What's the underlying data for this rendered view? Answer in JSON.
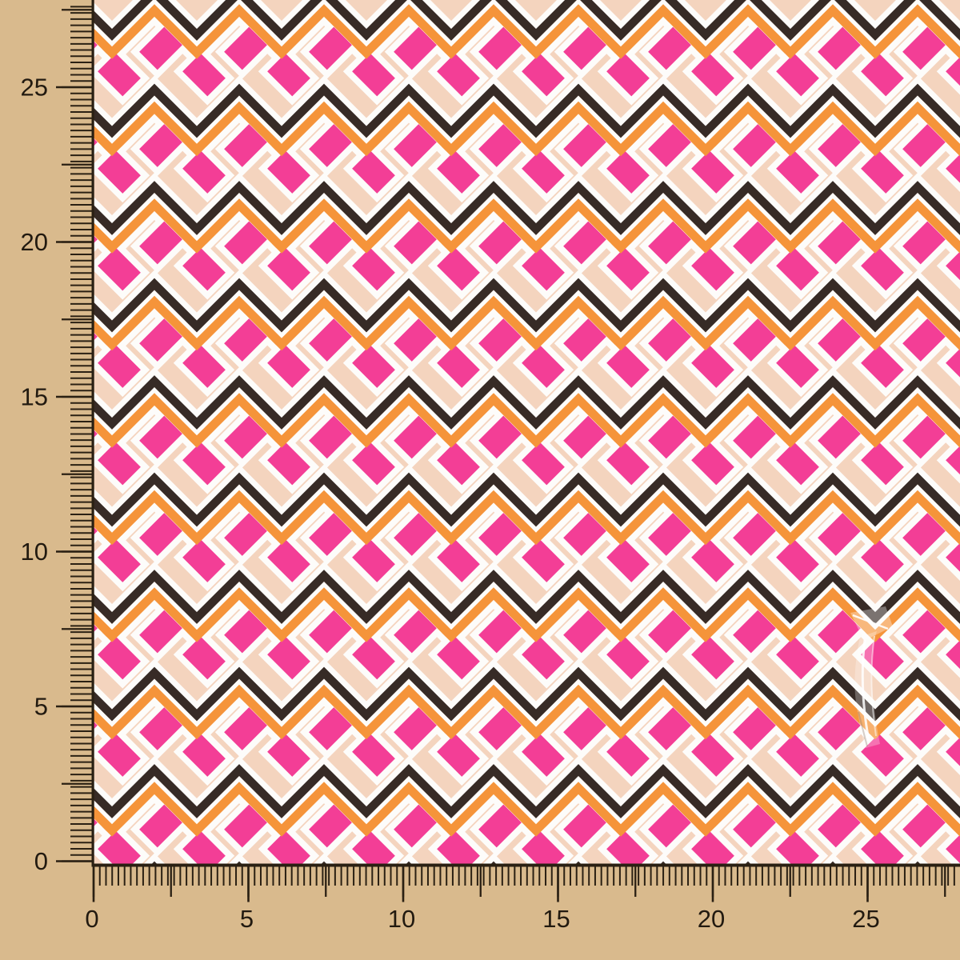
{
  "scene": {
    "description": "Fabric swatch with zigzag chevron print photographed on a tan board with measuring rulers on the left and bottom edges and a transparent plastic clip on the fabric"
  },
  "colors": {
    "background_tan": "#d9ba8d",
    "fabric_beige": "#f4d4be",
    "pink": "#f33e96",
    "orange": "#f5943a",
    "dark_brown": "#372b26",
    "white": "#fdfcfa",
    "ruler_tick": "#2a2013",
    "ruler_label": "#221a10"
  },
  "left_ruler": {
    "labels": [
      "25",
      "20",
      "15",
      "10",
      "5",
      "0"
    ],
    "label_interval": 5
  },
  "bottom_ruler": {
    "labels": [
      "0",
      "5",
      "10",
      "15",
      "20",
      "25"
    ],
    "label_interval": 5
  },
  "plastic_clip": {
    "present": true
  }
}
